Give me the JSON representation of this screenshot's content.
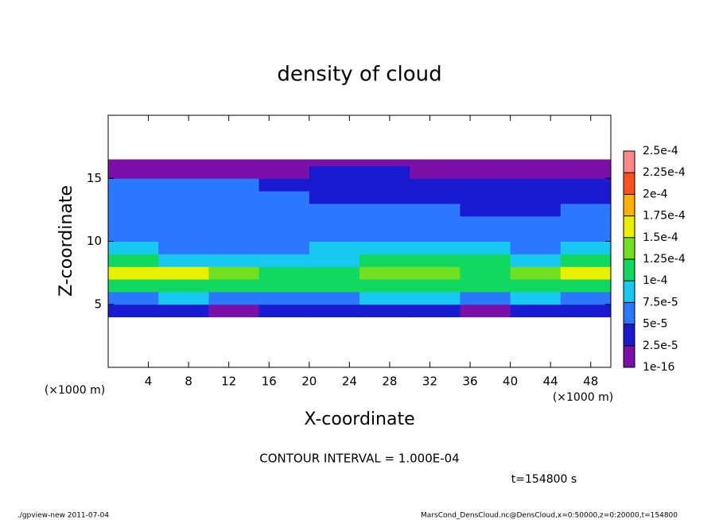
{
  "chart_data": {
    "type": "heatmap",
    "title": "density of cloud",
    "xlabel": "X-coordinate",
    "ylabel": "Z-coordinate",
    "x_unit_label": "(×1000 m)",
    "contour_note": "CONTOUR INTERVAL = 1.000E-04",
    "time_label": "t=154800 s",
    "footer_left": "./gpview-new   2011-07-04",
    "footer_right": "MarsCond_DensCloud.nc@DensCloud,x=0:50000,z=0:20000,t=154800",
    "xlim": [
      0,
      50
    ],
    "xticks": [
      4,
      8,
      12,
      16,
      20,
      24,
      28,
      32,
      36,
      40,
      44,
      48
    ],
    "ylim": [
      0,
      20
    ],
    "yticks": [
      5,
      10,
      15
    ],
    "x_edges": [
      0,
      5,
      10,
      15,
      20,
      25,
      30,
      35,
      40,
      45,
      50
    ],
    "y_edges": [
      4,
      5,
      6,
      7,
      8,
      9,
      10,
      11,
      12,
      13,
      14,
      15,
      16,
      16.5
    ],
    "values": [
      [
        3e-05,
        3e-05,
        2e-05,
        3e-05,
        3e-05,
        3e-05,
        3e-05,
        2e-05,
        3e-05,
        3e-05
      ],
      [
        7e-05,
        8e-05,
        7e-05,
        6e-05,
        7e-05,
        8e-05,
        8e-05,
        7e-05,
        8e-05,
        7e-05
      ],
      [
        0.00011,
        0.00012,
        0.00011,
        0.0001,
        0.0001,
        0.00011,
        0.00012,
        0.00011,
        0.00012,
        0.00012
      ],
      [
        0.00015,
        0.00016,
        0.00014,
        0.00012,
        0.00011,
        0.00013,
        0.00013,
        0.00012,
        0.00014,
        0.00015
      ],
      [
        0.0001,
        9e-05,
        9e-05,
        8e-05,
        9e-05,
        0.0001,
        0.00011,
        0.0001,
        9e-05,
        0.0001
      ],
      [
        8e-05,
        7e-05,
        7e-05,
        7e-05,
        8e-05,
        8e-05,
        9e-05,
        8e-05,
        7e-05,
        8e-05
      ],
      [
        7e-05,
        6e-05,
        6e-05,
        6e-05,
        7e-05,
        7e-05,
        7e-05,
        6e-05,
        6e-05,
        7e-05
      ],
      [
        7e-05,
        7e-05,
        6e-05,
        6e-05,
        6e-05,
        7e-05,
        6e-05,
        6e-05,
        6e-05,
        6e-05
      ],
      [
        6e-05,
        6e-05,
        6e-05,
        5e-05,
        5e-05,
        6e-05,
        5e-05,
        4e-05,
        4e-05,
        5e-05
      ],
      [
        6e-05,
        6e-05,
        5e-05,
        5e-05,
        4e-05,
        4e-05,
        4e-05,
        3e-05,
        4e-05,
        4e-05
      ],
      [
        5e-05,
        5e-05,
        5e-05,
        4e-05,
        4e-05,
        3e-05,
        3e-05,
        3e-05,
        3e-05,
        4e-05
      ],
      [
        2e-05,
        2e-05,
        2e-05,
        2e-05,
        3e-05,
        3e-05,
        2e-05,
        2e-05,
        2e-05,
        2e-05
      ],
      [
        1e-05,
        1e-05,
        1e-05,
        1e-05,
        1e-05,
        1e-05,
        1e-05,
        1e-05,
        1e-05,
        1e-05
      ]
    ],
    "colorbar": {
      "levels": [
        {
          "value": 1e-16,
          "label": "1e-16"
        },
        {
          "value": 2.5e-05,
          "label": "2.5e-5"
        },
        {
          "value": 5e-05,
          "label": "5e-5"
        },
        {
          "value": 7.5e-05,
          "label": "7.5e-5"
        },
        {
          "value": 0.0001,
          "label": "1e-4"
        },
        {
          "value": 0.000125,
          "label": "1.25e-4"
        },
        {
          "value": 0.00015,
          "label": "1.5e-4"
        },
        {
          "value": 0.000175,
          "label": "1.75e-4"
        },
        {
          "value": 0.0002,
          "label": "2e-4"
        },
        {
          "value": 0.000225,
          "label": "2.25e-4"
        },
        {
          "value": 0.00025,
          "label": "2.5e-4"
        }
      ],
      "colors": [
        "#7a10a8",
        "#1a1ad0",
        "#2a78ff",
        "#18c8f0",
        "#10d860",
        "#70e020",
        "#e8f000",
        "#ffb000",
        "#ff5020",
        "#ff8888"
      ]
    }
  }
}
